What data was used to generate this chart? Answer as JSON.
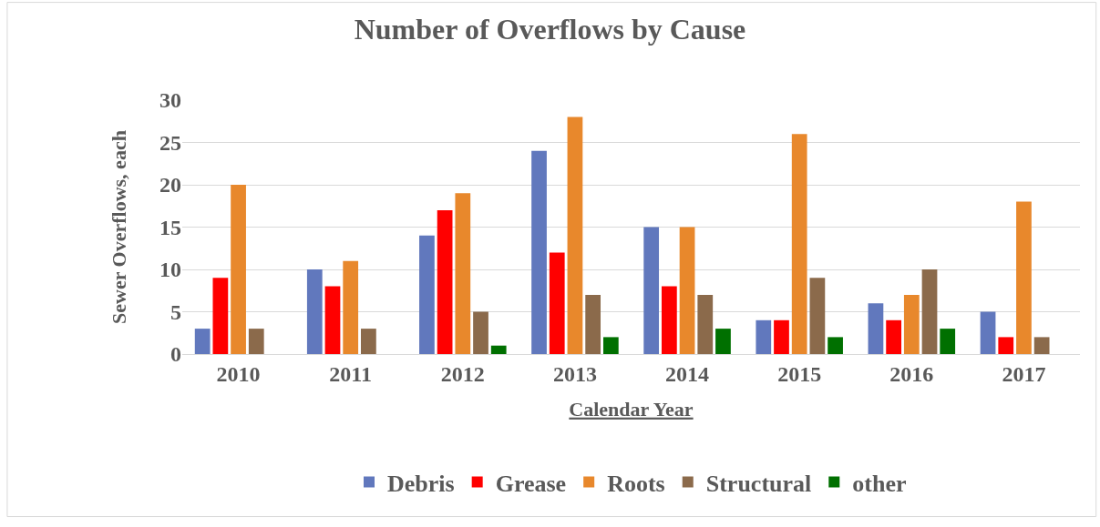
{
  "chart_data": {
    "type": "bar",
    "title": "Number of Overflows by Cause",
    "xlabel": "Calendar Year",
    "ylabel": "Sewer Overflows, each",
    "categories": [
      "2010",
      "2011",
      "2012",
      "2013",
      "2014",
      "2015",
      "2016",
      "2017"
    ],
    "series": [
      {
        "name": "Debris",
        "color": "#6178bd",
        "values": [
          3,
          10,
          14,
          24,
          15,
          4,
          6,
          5
        ]
      },
      {
        "name": "Grease",
        "color": "#ff0000",
        "values": [
          9,
          8,
          17,
          12,
          8,
          4,
          4,
          2
        ]
      },
      {
        "name": "Roots",
        "color": "#e8882c",
        "values": [
          20,
          11,
          19,
          28,
          15,
          26,
          7,
          18
        ]
      },
      {
        "name": "Structural",
        "color": "#8b6a4b",
        "values": [
          3,
          3,
          5,
          7,
          7,
          9,
          10,
          2
        ]
      },
      {
        "name": "other",
        "color": "#007000",
        "values": [
          0,
          0,
          1,
          2,
          3,
          2,
          3,
          0
        ]
      }
    ],
    "ylim": [
      0,
      30
    ],
    "yticks": [
      0,
      5,
      10,
      15,
      20,
      25,
      30
    ],
    "grid": "y",
    "legend": "bottom"
  }
}
